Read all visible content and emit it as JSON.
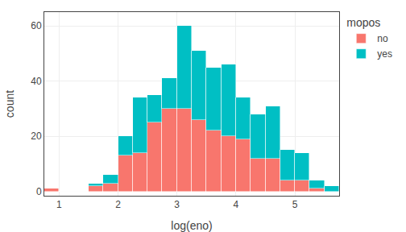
{
  "chart_data": {
    "type": "histogram",
    "xlabel": "log(eno)",
    "ylabel": "count",
    "legend_title": "mopos",
    "bins": [
      0.75,
      1.0,
      1.25,
      1.5,
      1.75,
      2.0,
      2.25,
      2.5,
      2.75,
      3.0,
      3.25,
      3.5,
      3.75,
      4.0,
      4.25,
      4.5,
      4.75,
      5.0,
      5.25,
      5.5,
      5.75
    ],
    "series": [
      {
        "name": "no",
        "color": "#F8766D",
        "values": [
          1,
          0,
          0,
          2,
          3,
          13,
          14,
          25,
          30,
          30,
          26,
          22,
          20,
          19,
          12,
          12,
          4,
          4,
          1,
          0
        ]
      },
      {
        "name": "yes",
        "color": "#00BFC4",
        "values": [
          0,
          0,
          0,
          1,
          3,
          7,
          20,
          10,
          11,
          30,
          25,
          23,
          26,
          15,
          16,
          19,
          11,
          10,
          3,
          2
        ]
      }
    ],
    "stacked": true,
    "xlim": [
      0.75,
      5.75
    ],
    "ylim": [
      -1.5,
      65
    ],
    "xticks": [
      1,
      2,
      3,
      4,
      5
    ],
    "yticks": [
      0,
      20,
      40,
      60
    ],
    "grid": true,
    "legend": "right"
  }
}
